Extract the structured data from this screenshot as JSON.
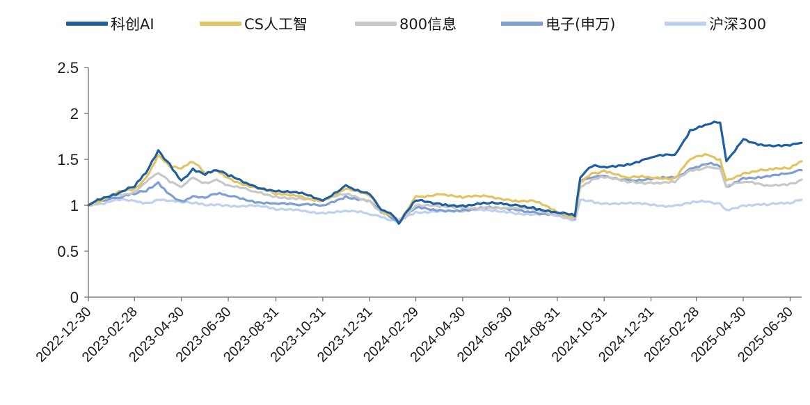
{
  "chart_data": {
    "type": "line",
    "title": "",
    "xlabel": "",
    "ylabel": "",
    "ylim": [
      0,
      2.5
    ],
    "y_ticks": [
      "0",
      "0.5",
      "1",
      "1.5",
      "2",
      "2.5"
    ],
    "x_tick_labels": [
      "2022-12-30",
      "2023-02-28",
      "2023-04-30",
      "2023-06-30",
      "2023-08-31",
      "2023-10-31",
      "2023-12-31",
      "2024-02-29",
      "2024-04-30",
      "2024-06-30",
      "2024-08-31",
      "2024-10-31",
      "2024-12-31",
      "2025-02-28",
      "2025-04-30",
      "2025-06-30"
    ],
    "legend_position": "top",
    "grid": false,
    "x": [
      "2022-12-30",
      "2023-01-31",
      "2023-02-28",
      "2023-03-15",
      "2023-03-31",
      "2023-04-15",
      "2023-04-30",
      "2023-05-15",
      "2023-05-31",
      "2023-06-15",
      "2023-06-30",
      "2023-07-31",
      "2023-08-31",
      "2023-09-30",
      "2023-10-31",
      "2023-11-30",
      "2023-12-31",
      "2024-01-15",
      "2024-01-31",
      "2024-02-07",
      "2024-02-29",
      "2024-03-31",
      "2024-04-30",
      "2024-05-31",
      "2024-06-30",
      "2024-07-31",
      "2024-08-31",
      "2024-09-23",
      "2024-09-30",
      "2024-10-15",
      "2024-10-31",
      "2024-11-30",
      "2024-12-31",
      "2025-01-31",
      "2025-02-20",
      "2025-03-15",
      "2025-03-31",
      "2025-04-08",
      "2025-04-30",
      "2025-05-31",
      "2025-06-30",
      "2025-07-15"
    ],
    "series": [
      {
        "name": "科创AI",
        "color": "#1f5fa0",
        "values": [
          1.0,
          1.12,
          1.2,
          1.35,
          1.6,
          1.45,
          1.27,
          1.4,
          1.33,
          1.38,
          1.32,
          1.22,
          1.15,
          1.13,
          1.05,
          1.22,
          1.12,
          0.95,
          0.88,
          0.8,
          1.05,
          1.02,
          1.0,
          1.02,
          1.0,
          0.98,
          0.92,
          0.88,
          1.3,
          1.42,
          1.42,
          1.45,
          1.52,
          1.55,
          1.82,
          1.88,
          1.9,
          1.48,
          1.72,
          1.65,
          1.65,
          1.68
        ]
      },
      {
        "name": "CS人工智",
        "color": "#e3c465",
        "values": [
          1.0,
          1.12,
          1.18,
          1.3,
          1.55,
          1.42,
          1.4,
          1.47,
          1.35,
          1.38,
          1.3,
          1.2,
          1.12,
          1.1,
          1.05,
          1.18,
          1.1,
          0.95,
          0.88,
          0.82,
          1.1,
          1.12,
          1.08,
          1.1,
          1.06,
          1.05,
          0.92,
          0.87,
          1.25,
          1.35,
          1.38,
          1.3,
          1.3,
          1.3,
          1.5,
          1.55,
          1.5,
          1.27,
          1.35,
          1.38,
          1.4,
          1.48
        ]
      },
      {
        "name": "800信息",
        "color": "#c8c8c8",
        "values": [
          1.0,
          1.1,
          1.15,
          1.25,
          1.35,
          1.25,
          1.2,
          1.3,
          1.25,
          1.28,
          1.22,
          1.15,
          1.1,
          1.08,
          1.05,
          1.12,
          1.05,
          0.93,
          0.88,
          0.8,
          1.0,
          0.98,
          0.97,
          0.98,
          0.97,
          0.95,
          0.9,
          0.86,
          1.2,
          1.28,
          1.3,
          1.25,
          1.25,
          1.25,
          1.38,
          1.42,
          1.4,
          1.2,
          1.25,
          1.22,
          1.24,
          1.28
        ]
      },
      {
        "name": "电子(申万)",
        "color": "#7f9fd2",
        "values": [
          1.0,
          1.08,
          1.12,
          1.15,
          1.25,
          1.12,
          1.05,
          1.1,
          1.08,
          1.12,
          1.1,
          1.05,
          1.02,
          1.0,
          1.0,
          1.1,
          1.05,
          0.92,
          0.85,
          0.8,
          0.97,
          0.95,
          0.95,
          0.97,
          0.95,
          0.93,
          0.9,
          0.85,
          1.25,
          1.3,
          1.32,
          1.28,
          1.28,
          1.3,
          1.4,
          1.45,
          1.42,
          1.2,
          1.3,
          1.32,
          1.35,
          1.38
        ]
      },
      {
        "name": "沪深300",
        "color": "#bfd1ee",
        "values": [
          1.0,
          1.05,
          1.05,
          1.03,
          1.06,
          1.05,
          1.03,
          1.02,
          1.0,
          1.01,
          1.0,
          1.0,
          0.95,
          0.95,
          0.92,
          0.94,
          0.9,
          0.87,
          0.84,
          0.85,
          0.93,
          0.94,
          0.93,
          0.95,
          0.93,
          0.9,
          0.88,
          0.84,
          1.06,
          1.05,
          1.02,
          1.02,
          1.0,
          1.0,
          1.02,
          1.04,
          1.02,
          0.95,
          1.0,
          1.0,
          1.02,
          1.06
        ]
      }
    ]
  }
}
